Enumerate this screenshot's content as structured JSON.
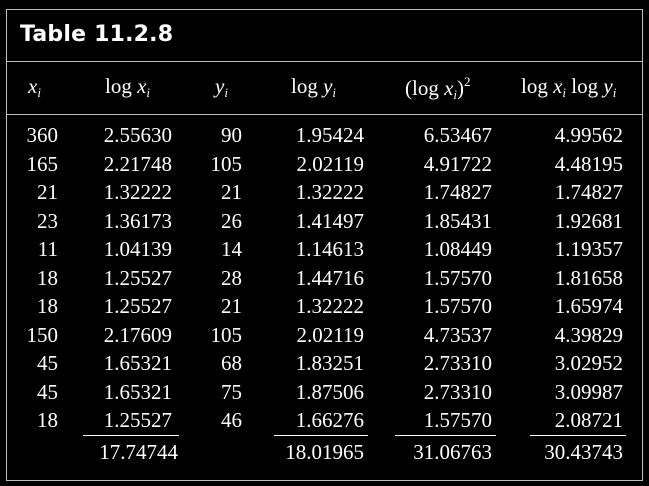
{
  "title": "Table 11.2.8",
  "headers": {
    "x": "x",
    "x_sub": "i",
    "logx_fn": "log ",
    "logx_var": "x",
    "logx_sub": "i",
    "y": "y",
    "y_sub": "i",
    "logy_fn": "log ",
    "logy_var": "y",
    "logy_sub": "i",
    "logx2_open": "(log ",
    "logx2_var": "x",
    "logx2_sub": "i",
    "logx2_close": ")",
    "logx2_sup": "2",
    "prod_fn1": "log ",
    "prod_var1": "x",
    "prod_sub1": "i",
    "prod_fn2": " log ",
    "prod_var2": "y",
    "prod_sub2": "i"
  },
  "columns": {
    "x": [
      "360",
      "165",
      "21",
      "23",
      "11",
      "18",
      "18",
      "150",
      "45",
      "45",
      "18"
    ],
    "logx": [
      "2.55630",
      "2.21748",
      "1.32222",
      "1.36173",
      "1.04139",
      "1.25527",
      "1.25527",
      "2.17609",
      "1.65321",
      "1.65321",
      "1.25527"
    ],
    "y": [
      "90",
      "105",
      "21",
      "26",
      "14",
      "28",
      "21",
      "105",
      "68",
      "75",
      "46"
    ],
    "logy": [
      "1.95424",
      "2.02119",
      "1.32222",
      "1.41497",
      "1.14613",
      "1.44716",
      "1.32222",
      "2.02119",
      "1.83251",
      "1.87506",
      "1.66276"
    ],
    "logx2": [
      "6.53467",
      "4.91722",
      "1.74827",
      "1.85431",
      "1.08449",
      "1.57570",
      "1.57570",
      "4.73537",
      "2.73310",
      "2.73310",
      "1.57570"
    ],
    "prod": [
      "4.99562",
      "4.48195",
      "1.74827",
      "1.92681",
      "1.19357",
      "1.81658",
      "1.65974",
      "4.39829",
      "3.02952",
      "3.09987",
      "2.08721"
    ]
  },
  "totals": {
    "logx": "17.74744",
    "logy": "18.01965",
    "logx2": "31.06763",
    "prod": "30.43743"
  },
  "colors": {
    "background": "#000000",
    "text": "#ffffff",
    "border": "#bdbdbd"
  }
}
